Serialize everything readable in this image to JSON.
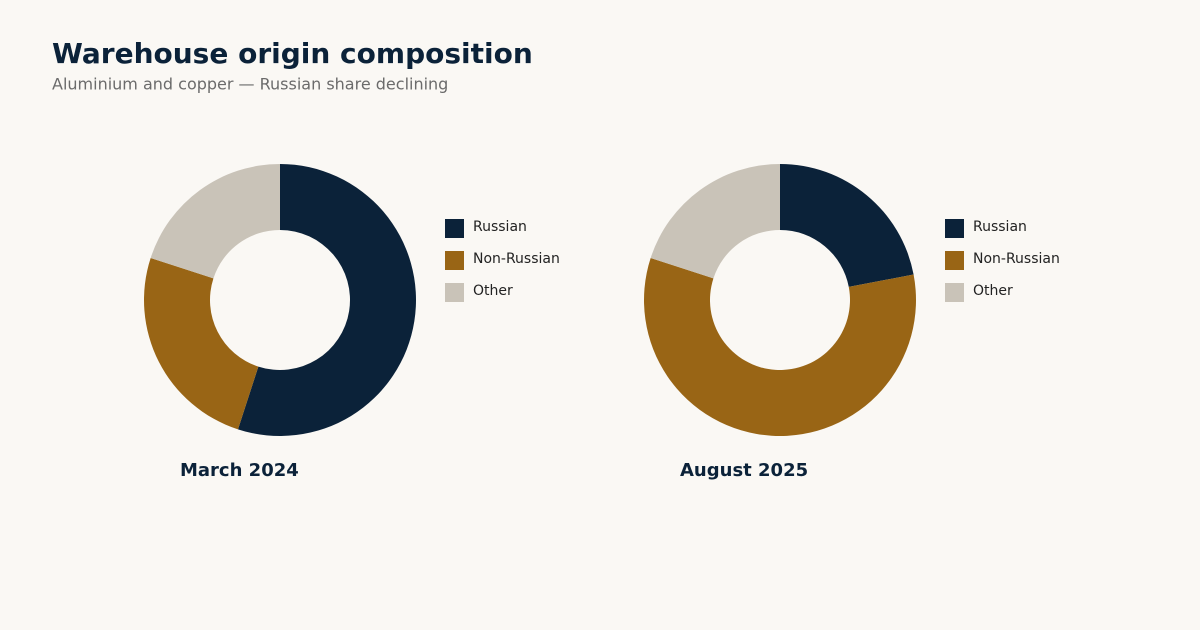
{
  "header": {
    "title": "Warehouse origin composition",
    "subtitle": "Aluminium and copper — Russian share declining"
  },
  "chart_data": [
    {
      "type": "pie",
      "title": "March 2024",
      "categories": [
        "Russian",
        "Non-Russian",
        "Other"
      ],
      "values": [
        55,
        25,
        20
      ],
      "colors": [
        "#0b2239",
        "#996515",
        "#c9c3b8"
      ],
      "donut": true
    },
    {
      "type": "pie",
      "title": "August 2025",
      "categories": [
        "Russian",
        "Non-Russian",
        "Other"
      ],
      "values": [
        22,
        58,
        20
      ],
      "colors": [
        "#0b2239",
        "#996515",
        "#c9c3b8"
      ],
      "donut": true
    }
  ]
}
